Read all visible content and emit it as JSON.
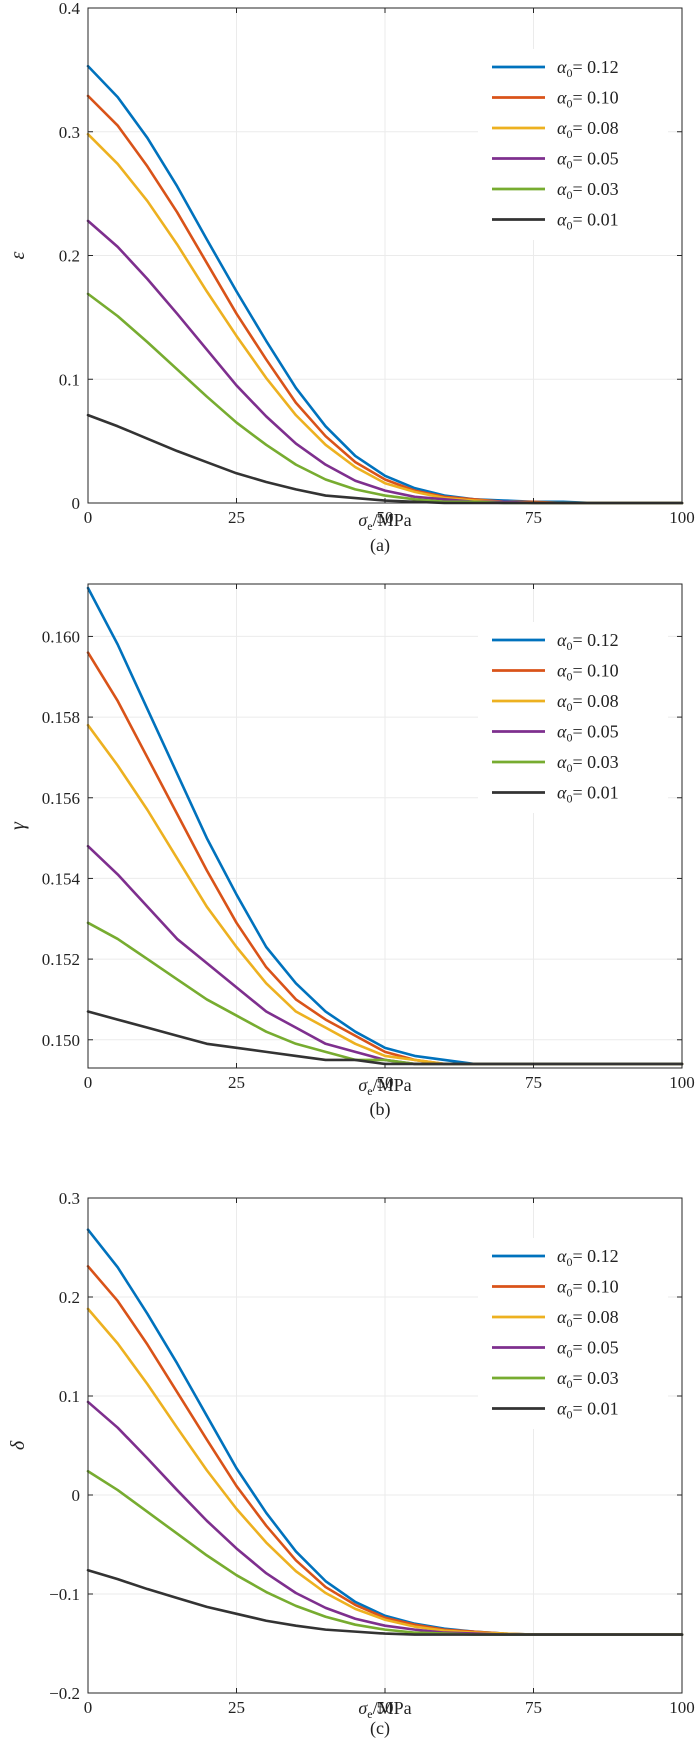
{
  "chart_data": [
    {
      "type": "line",
      "panel_label": "(a)",
      "xlabel": "σe/MPa",
      "ylabel": "ε",
      "xlim": [
        0,
        100
      ],
      "ylim": [
        0,
        0.4
      ],
      "xticks": [
        0,
        25,
        50,
        75,
        100
      ],
      "yticks": [
        0,
        0.1,
        0.2,
        0.3,
        0.4
      ],
      "ytick_labels": [
        "0",
        "0.1",
        "0.2",
        "0.3",
        "0.4"
      ],
      "x": [
        0,
        5,
        10,
        15,
        20,
        25,
        30,
        35,
        40,
        45,
        50,
        55,
        60,
        65,
        70,
        75,
        80,
        85,
        90,
        95,
        100
      ],
      "legend_position": "top-right",
      "series": [
        {
          "name": "α0= 0.12",
          "color": "#0072BD",
          "values": [
            0.353,
            0.328,
            0.295,
            0.256,
            0.213,
            0.171,
            0.131,
            0.093,
            0.062,
            0.038,
            0.022,
            0.012,
            0.006,
            0.003,
            0.002,
            0.001,
            0.001,
            0,
            0,
            0,
            0
          ]
        },
        {
          "name": "α0= 0.10",
          "color": "#D95319",
          "values": [
            0.329,
            0.305,
            0.272,
            0.235,
            0.194,
            0.153,
            0.116,
            0.081,
            0.054,
            0.033,
            0.019,
            0.01,
            0.005,
            0.003,
            0.001,
            0.001,
            0,
            0,
            0,
            0,
            0
          ]
        },
        {
          "name": "α0= 0.08",
          "color": "#EDB120",
          "values": [
            0.298,
            0.274,
            0.244,
            0.209,
            0.171,
            0.135,
            0.101,
            0.071,
            0.047,
            0.029,
            0.016,
            0.009,
            0.004,
            0.002,
            0.001,
            0,
            0,
            0,
            0,
            0,
            0
          ]
        },
        {
          "name": "α0= 0.05",
          "color": "#7E2F8E",
          "values": [
            0.228,
            0.207,
            0.181,
            0.153,
            0.124,
            0.095,
            0.07,
            0.048,
            0.031,
            0.018,
            0.01,
            0.005,
            0.003,
            0.001,
            0.001,
            0,
            0,
            0,
            0,
            0,
            0
          ]
        },
        {
          "name": "α0= 0.03",
          "color": "#77AC30",
          "values": [
            0.169,
            0.151,
            0.13,
            0.108,
            0.086,
            0.065,
            0.047,
            0.031,
            0.019,
            0.011,
            0.006,
            0.003,
            0.001,
            0.001,
            0,
            0,
            0,
            0,
            0,
            0,
            0
          ]
        },
        {
          "name": "α0= 0.01",
          "color": "#333333",
          "values": [
            0.071,
            0.062,
            0.052,
            0.042,
            0.033,
            0.024,
            0.017,
            0.011,
            0.006,
            0.004,
            0.002,
            0.001,
            0,
            0,
            0,
            0,
            0,
            0,
            0,
            0,
            0
          ]
        }
      ]
    },
    {
      "type": "line",
      "panel_label": "(b)",
      "xlabel": "σe/MPa",
      "ylabel": "γ",
      "xlim": [
        0,
        100
      ],
      "ylim": [
        0.1493,
        0.1613
      ],
      "xticks": [
        0,
        25,
        50,
        75,
        100
      ],
      "yticks": [
        0.15,
        0.152,
        0.154,
        0.156,
        0.158,
        0.16
      ],
      "ytick_labels": [
        "0.150",
        "0.152",
        "0.154",
        "0.156",
        "0.158",
        "0.160"
      ],
      "x": [
        0,
        5,
        10,
        15,
        20,
        25,
        30,
        35,
        40,
        45,
        50,
        55,
        60,
        65,
        70,
        75,
        80,
        85,
        90,
        95,
        100
      ],
      "legend_position": "top-right",
      "series": [
        {
          "name": "α0= 0.12",
          "color": "#0072BD",
          "values": [
            0.1612,
            0.1598,
            0.1582,
            0.1566,
            0.155,
            0.1536,
            0.1523,
            0.1514,
            0.1507,
            0.1502,
            0.1498,
            0.1496,
            0.1495,
            0.1494,
            0.1494,
            0.1494,
            0.1494,
            0.1494,
            0.1494,
            0.1494,
            0.1494
          ]
        },
        {
          "name": "α0= 0.10",
          "color": "#D95319",
          "values": [
            0.1596,
            0.1584,
            0.157,
            0.1556,
            0.1542,
            0.1529,
            0.1518,
            0.151,
            0.1505,
            0.1501,
            0.1497,
            0.1495,
            0.1494,
            0.1494,
            0.1494,
            0.1494,
            0.1494,
            0.1494,
            0.1494,
            0.1494,
            0.1494
          ]
        },
        {
          "name": "α0= 0.08",
          "color": "#EDB120",
          "values": [
            0.1578,
            0.1568,
            0.1557,
            0.1545,
            0.1533,
            0.1523,
            0.1514,
            0.1507,
            0.1503,
            0.1499,
            0.1496,
            0.1495,
            0.1494,
            0.1494,
            0.1494,
            0.1494,
            0.1494,
            0.1494,
            0.1494,
            0.1494,
            0.1494
          ]
        },
        {
          "name": "α0= 0.05",
          "color": "#7E2F8E",
          "values": [
            0.1548,
            0.1541,
            0.1533,
            0.1525,
            0.1519,
            0.1513,
            0.1507,
            0.1503,
            0.1499,
            0.1497,
            0.1495,
            0.1494,
            0.1494,
            0.1494,
            0.1494,
            0.1494,
            0.1494,
            0.1494,
            0.1494,
            0.1494,
            0.1494
          ]
        },
        {
          "name": "α0= 0.03",
          "color": "#77AC30",
          "values": [
            0.1529,
            0.1525,
            0.152,
            0.1515,
            0.151,
            0.1506,
            0.1502,
            0.1499,
            0.1497,
            0.1495,
            0.1495,
            0.1494,
            0.1494,
            0.1494,
            0.1494,
            0.1494,
            0.1494,
            0.1494,
            0.1494,
            0.1494,
            0.1494
          ]
        },
        {
          "name": "α0= 0.01",
          "color": "#333333",
          "values": [
            0.1507,
            0.1505,
            0.1503,
            0.1501,
            0.1499,
            0.1498,
            0.1497,
            0.1496,
            0.1495,
            0.1495,
            0.1494,
            0.1494,
            0.1494,
            0.1494,
            0.1494,
            0.1494,
            0.1494,
            0.1494,
            0.1494,
            0.1494,
            0.1494
          ]
        }
      ]
    },
    {
      "type": "line",
      "panel_label": "(c)",
      "xlabel": "σe/MPa",
      "ylabel": "δ",
      "xlim": [
        0,
        100
      ],
      "ylim": [
        -0.2,
        0.3
      ],
      "xticks": [
        0,
        25,
        50,
        75,
        100
      ],
      "yticks": [
        -0.2,
        -0.1,
        0,
        0.1,
        0.2,
        0.3
      ],
      "ytick_labels": [
        "−0.2",
        "−0.1",
        "0",
        "0.1",
        "0.2",
        "0.3"
      ],
      "x": [
        0,
        5,
        10,
        15,
        20,
        25,
        30,
        35,
        40,
        45,
        50,
        55,
        60,
        65,
        70,
        75,
        80,
        85,
        90,
        95,
        100
      ],
      "legend_position": "top-right",
      "series": [
        {
          "name": "α0= 0.12",
          "color": "#0072BD",
          "values": [
            0.268,
            0.23,
            0.183,
            0.133,
            0.08,
            0.027,
            -0.018,
            -0.057,
            -0.087,
            -0.108,
            -0.122,
            -0.13,
            -0.135,
            -0.138,
            -0.14,
            -0.141,
            -0.141,
            -0.141,
            -0.141,
            -0.141,
            -0.141
          ]
        },
        {
          "name": "α0= 0.10",
          "color": "#D95319",
          "values": [
            0.231,
            0.196,
            0.152,
            0.104,
            0.056,
            0.009,
            -0.031,
            -0.066,
            -0.093,
            -0.111,
            -0.124,
            -0.131,
            -0.136,
            -0.138,
            -0.14,
            -0.141,
            -0.141,
            -0.141,
            -0.141,
            -0.141,
            -0.141
          ]
        },
        {
          "name": "α0= 0.08",
          "color": "#EDB120",
          "values": [
            0.188,
            0.153,
            0.112,
            0.068,
            0.025,
            -0.014,
            -0.048,
            -0.077,
            -0.099,
            -0.115,
            -0.126,
            -0.133,
            -0.137,
            -0.139,
            -0.14,
            -0.141,
            -0.141,
            -0.141,
            -0.141,
            -0.141,
            -0.141
          ]
        },
        {
          "name": "α0= 0.05",
          "color": "#7E2F8E",
          "values": [
            0.094,
            0.068,
            0.037,
            0.005,
            -0.026,
            -0.054,
            -0.079,
            -0.099,
            -0.114,
            -0.125,
            -0.132,
            -0.136,
            -0.139,
            -0.14,
            -0.141,
            -0.141,
            -0.141,
            -0.141,
            -0.141,
            -0.141,
            -0.141
          ]
        },
        {
          "name": "α0= 0.03",
          "color": "#77AC30",
          "values": [
            0.024,
            0.005,
            -0.017,
            -0.039,
            -0.061,
            -0.081,
            -0.098,
            -0.112,
            -0.123,
            -0.131,
            -0.136,
            -0.139,
            -0.14,
            -0.141,
            -0.141,
            -0.141,
            -0.141,
            -0.141,
            -0.141,
            -0.141,
            -0.141
          ]
        },
        {
          "name": "α0= 0.01",
          "color": "#333333",
          "values": [
            -0.076,
            -0.085,
            -0.095,
            -0.104,
            -0.113,
            -0.12,
            -0.127,
            -0.132,
            -0.136,
            -0.138,
            -0.14,
            -0.141,
            -0.141,
            -0.141,
            -0.141,
            -0.141,
            -0.141,
            -0.141,
            -0.141,
            -0.141,
            -0.141
          ]
        }
      ]
    }
  ]
}
